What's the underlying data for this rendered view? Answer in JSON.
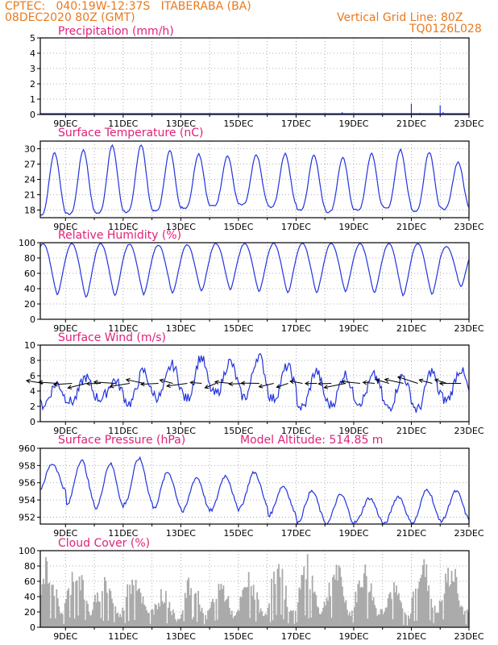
{
  "header": {
    "line1_left": "CPTEC:   040:19W-12:37S   ITABERABA (BA)",
    "line2_left": "08DEC2020 80Z (GMT)",
    "line1_right": "Vertical Grid Line: 80Z",
    "line2_right": "TQ0126L028"
  },
  "colors": {
    "series": "#2233dd",
    "cloud": "#aaaaaa",
    "title": "#e0217a",
    "header": "#e87a1e"
  },
  "chart_data": [
    {
      "type": "bar",
      "title": "Precipitation (mm/h)",
      "ylim": [
        0,
        5
      ],
      "yticks": [
        "0",
        "1",
        "2",
        "3",
        "4",
        "5"
      ],
      "xticks": [
        "9DEC",
        "11DEC",
        "13DEC",
        "15DEC",
        "17DEC",
        "19DEC",
        "21DEC",
        "23DEC"
      ],
      "x_range_days": [
        8.125,
        23.0
      ],
      "grid": true,
      "events": [
        {
          "day": 8.4,
          "value": 0.05
        },
        {
          "day": 9.5,
          "value": 0.04
        },
        {
          "day": 12.4,
          "value": 0.03
        },
        {
          "day": 18.6,
          "value": 0.15
        },
        {
          "day": 19.4,
          "value": 0.05
        },
        {
          "day": 20.5,
          "value": 0.05
        },
        {
          "day": 21.0,
          "value": 0.7
        },
        {
          "day": 21.3,
          "value": 0.1
        },
        {
          "day": 22.0,
          "value": 0.6
        },
        {
          "day": 22.1,
          "value": 0.15
        }
      ]
    },
    {
      "type": "line",
      "title": "Surface Temperature (nC)",
      "ylim": [
        16.5,
        31.5
      ],
      "yticks": [
        "18",
        "21",
        "24",
        "27",
        "30"
      ],
      "xticks": [
        "9DEC",
        "11DEC",
        "13DEC",
        "15DEC",
        "17DEC",
        "19DEC",
        "21DEC",
        "23DEC"
      ],
      "grid": true,
      "daily_max": [
        29.2,
        29.8,
        30.6,
        30.8,
        29.6,
        29.0,
        28.6,
        28.8,
        29.0,
        28.8,
        28.2,
        29.0,
        29.8,
        29.4,
        27.4
      ],
      "daily_min": [
        17.0,
        17.2,
        17.4,
        17.6,
        17.8,
        18.4,
        18.8,
        19.0,
        18.6,
        18.0,
        17.6,
        18.0,
        18.4,
        17.8,
        18.2
      ]
    },
    {
      "type": "line",
      "title": "Relative Humidity (%)",
      "ylim": [
        0,
        100
      ],
      "yticks": [
        "0",
        "20",
        "40",
        "60",
        "80",
        "100"
      ],
      "xticks": [
        "9DEC",
        "11DEC",
        "13DEC",
        "15DEC",
        "17DEC",
        "19DEC",
        "21DEC",
        "23DEC"
      ],
      "grid": true,
      "daily_max": [
        99,
        99,
        99,
        98,
        97,
        97,
        99,
        99,
        99,
        99,
        99,
        99,
        99,
        99,
        95
      ],
      "daily_min": [
        32,
        28,
        30,
        32,
        34,
        36,
        38,
        36,
        34,
        34,
        36,
        34,
        30,
        32,
        42
      ]
    },
    {
      "type": "line",
      "title": "Surface Wind (m/s)",
      "ylim": [
        0,
        10
      ],
      "yticks": [
        "0",
        "2",
        "4",
        "6",
        "8",
        "10"
      ],
      "xticks": [
        "9DEC",
        "11DEC",
        "13DEC",
        "15DEC",
        "17DEC",
        "19DEC",
        "21DEC",
        "23DEC"
      ],
      "grid": true,
      "daily_max": [
        5.0,
        5.8,
        5.4,
        6.6,
        7.4,
        8.4,
        7.8,
        8.6,
        7.2,
        6.6,
        6.2,
        6.0,
        6.0,
        6.6,
        6.8
      ],
      "daily_min": [
        2.2,
        2.6,
        3.0,
        2.4,
        3.2,
        3.0,
        3.6,
        3.2,
        3.0,
        1.8,
        2.2,
        2.6,
        1.8,
        1.6,
        2.8
      ],
      "vectors_day_step": 0.5,
      "vector_baseline": 5.0
    },
    {
      "type": "line",
      "title": "Surface Pressure (hPa)",
      "annotation": "Model Altitude: 514.85 m",
      "ylim": [
        951.2,
        960
      ],
      "yticks": [
        "952",
        "954",
        "956",
        "958",
        "960"
      ],
      "xticks": [
        "9DEC",
        "11DEC",
        "13DEC",
        "15DEC",
        "17DEC",
        "19DEC",
        "21DEC",
        "23DEC"
      ],
      "grid": true,
      "daily_max": [
        958.2,
        958.6,
        958.2,
        958.8,
        957.2,
        956.6,
        956.8,
        957.2,
        955.6,
        955.0,
        954.6,
        954.2,
        954.4,
        955.2,
        955.0
      ],
      "daily_min": [
        955.0,
        953.4,
        953.0,
        953.6,
        953.0,
        952.6,
        952.8,
        953.2,
        952.2,
        951.4,
        951.2,
        951.4,
        951.2,
        951.4,
        951.6
      ]
    },
    {
      "type": "bar",
      "title": "Cloud Cover (%)",
      "ylim": [
        0,
        100
      ],
      "yticks": [
        "0",
        "20",
        "40",
        "60",
        "80",
        "100"
      ],
      "xticks": [
        "9DEC",
        "11DEC",
        "13DEC",
        "15DEC",
        "17DEC",
        "19DEC",
        "21DEC",
        "23DEC"
      ],
      "grid": true,
      "daily_peak": [
        96,
        94,
        72,
        82,
        52,
        70,
        66,
        74,
        90,
        96,
        90,
        86,
        60,
        96,
        88
      ]
    }
  ]
}
